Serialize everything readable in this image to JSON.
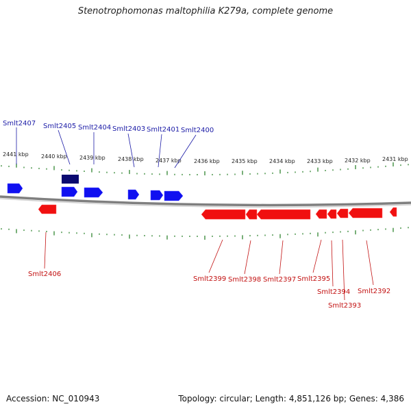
{
  "title": "Stenotrophomonas maltophilia K279a, complete genome",
  "accession": "Accession: NC_010943",
  "summary": "Topology: circular; Length: 4,851,126 bp; Genes: 4,386",
  "colors": {
    "forward_gene": "#1010f0",
    "forward_gene_highlight": "#0a0a70",
    "reverse_gene": "#f01010",
    "tick": "#1e7a1e",
    "backbone": "#808080",
    "label_forward": "#1a1aa6",
    "label_reverse": "#c21010"
  },
  "kbp_labels": [
    "2441 kbp",
    "2440 kbp",
    "2439 kbp",
    "2438 kbp",
    "2437 kbp",
    "2436 kbp",
    "2435 kbp",
    "2434 kbp",
    "2433 kbp",
    "2432 kbp",
    "2431 kbp"
  ],
  "forward_gene_labels": [
    "Smlt2407",
    "Smlt2405",
    "Smlt2404",
    "Smlt2403",
    "Smlt2401",
    "Smlt2400"
  ],
  "reverse_gene_labels": [
    "Smlt2406",
    "Smlt2399",
    "Smlt2398",
    "Smlt2397",
    "Smlt2395",
    "Smlt2394",
    "Smlt2393",
    "Smlt2392"
  ]
}
